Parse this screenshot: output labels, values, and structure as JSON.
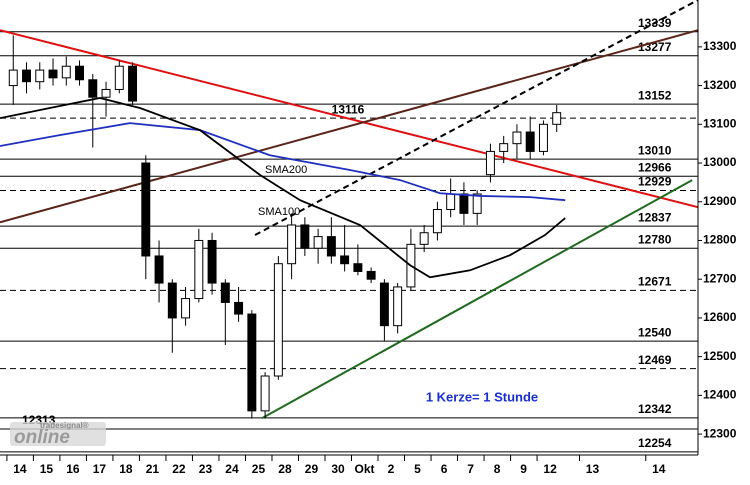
{
  "chart_data": {
    "type": "candlestick",
    "x": [
      -0.25,
      0.25,
      0.75,
      1.25,
      1.75,
      2.25,
      2.75,
      3.25,
      3.75,
      4.25,
      4.75,
      5.25,
      5.75,
      6.25,
      6.75,
      7.25,
      7.75,
      8.25,
      8.75,
      9.25,
      9.75,
      10.25,
      10.75,
      11.25,
      11.75,
      12.25,
      12.75,
      13.25,
      13.75,
      14.25,
      14.75,
      15.25,
      15.75,
      16.25,
      16.75,
      17.25,
      17.75,
      18.25,
      18.75,
      19.25,
      19.75,
      20.25
    ],
    "open": [
      13200,
      13240,
      13210,
      13240,
      13220,
      13250,
      13215,
      13170,
      13190,
      13250,
      13000,
      12760,
      12690,
      12600,
      12650,
      12800,
      12690,
      12640,
      12610,
      12360,
      12450,
      12740,
      12840,
      12780,
      12810,
      12760,
      12740,
      12720,
      12690,
      12580,
      12680,
      12790,
      12820,
      12880,
      12920,
      12870,
      12970,
      13030,
      13050,
      13080,
      13030,
      13100
    ],
    "high": [
      13330,
      13260,
      13260,
      13270,
      13275,
      13265,
      13230,
      13210,
      13265,
      13260,
      13020,
      12800,
      12700,
      12680,
      12830,
      12820,
      12700,
      12680,
      12620,
      12460,
      12760,
      12870,
      12860,
      12830,
      12860,
      12840,
      12790,
      12730,
      12700,
      12690,
      12830,
      12840,
      12900,
      12960,
      12950,
      12930,
      13050,
      13070,
      13100,
      13120,
      13110,
      13150
    ],
    "low": [
      13150,
      13180,
      13190,
      13200,
      13200,
      13200,
      13040,
      13120,
      13180,
      13150,
      12700,
      12640,
      12510,
      12580,
      12640,
      12660,
      12530,
      12590,
      12340,
      12340,
      12440,
      12700,
      12760,
      12740,
      12740,
      12720,
      12710,
      12690,
      12540,
      12560,
      12670,
      12770,
      12800,
      12860,
      12840,
      12840,
      12950,
      13000,
      13010,
      13010,
      13020,
      13080
    ],
    "close": [
      13240,
      13210,
      13240,
      13220,
      13250,
      13215,
      13170,
      13190,
      13250,
      13160,
      12760,
      12690,
      12600,
      12650,
      12800,
      12690,
      12640,
      12610,
      12360,
      12450,
      12740,
      12840,
      12780,
      12810,
      12760,
      12740,
      12720,
      12700,
      12580,
      12680,
      12790,
      12820,
      12880,
      12920,
      12870,
      12920,
      13030,
      13050,
      13080,
      13030,
      13100,
      13130
    ],
    "up_color": "#ffffff",
    "down_color": "#000000",
    "series": [
      {
        "name": "SMA200",
        "color": "#1f2fc0",
        "x": [
          -0.75,
          1.5,
          4.15,
          6.8,
          9.43,
          12.45,
          14.34,
          15.85,
          17.36,
          19.25,
          20.57
        ],
        "values": [
          13044,
          13072,
          13103,
          13085,
          13020,
          12982,
          12956,
          12922,
          12915,
          12912,
          12904
        ]
      },
      {
        "name": "SMA100",
        "color": "#000000",
        "x": [
          -0.75,
          1.13,
          3.02,
          4.53,
          6.79,
          9.06,
          10.57,
          12.83,
          14.72,
          15.47,
          16.98,
          18.49,
          19.81,
          20.57
        ],
        "values": [
          13116,
          13142,
          13168,
          13142,
          13085,
          12969,
          12904,
          12840,
          12736,
          12705,
          12723,
          12762,
          12814,
          12858
        ]
      }
    ],
    "trendlines": [
      {
        "color": "#e01010",
        "dashed": false,
        "x": [
          -0.75,
          25.58
        ],
        "values": [
          13343,
          12886
        ]
      },
      {
        "color": "#5a2418",
        "dashed": false,
        "x": [
          -0.75,
          25.58
        ],
        "values": [
          12847,
          13343
        ]
      },
      {
        "color": "#000000",
        "dashed": true,
        "x": [
          8.87,
          25.58
        ],
        "values": [
          12814,
          13421
        ]
      },
      {
        "color": "#1e6a1e",
        "dashed": false,
        "x": [
          9.13,
          25.36
        ],
        "values": [
          12341,
          12956
        ]
      }
    ],
    "levels": [
      {
        "value": 13339,
        "dashed": false,
        "label_side": "right"
      },
      {
        "value": 13277,
        "dashed": false,
        "label_side": "right"
      },
      {
        "value": 13152,
        "dashed": false,
        "label_side": "right"
      },
      {
        "value": 13116,
        "dashed": true,
        "label_side": "center"
      },
      {
        "value": 13010,
        "dashed": false,
        "label_side": "right"
      },
      {
        "value": 12966,
        "dashed": false,
        "label_side": "right"
      },
      {
        "value": 12929,
        "dashed": true,
        "label_side": "right"
      },
      {
        "value": 12837,
        "dashed": false,
        "label_side": "right"
      },
      {
        "value": 12780,
        "dashed": false,
        "label_side": "right"
      },
      {
        "value": 12671,
        "dashed": true,
        "label_side": "right"
      },
      {
        "value": 12540,
        "dashed": false,
        "label_side": "right"
      },
      {
        "value": 12469,
        "dashed": true,
        "label_side": "right"
      },
      {
        "value": 12342,
        "dashed": false,
        "label_side": "right"
      },
      {
        "value": 12313,
        "dashed": false,
        "label_side": "left"
      },
      {
        "value": 12254,
        "dashed": false,
        "label_side": "right"
      }
    ],
    "annotation": "1 Kerze= 1 Stunde",
    "logo": {
      "brand": "tradesignal®",
      "name": "online"
    },
    "xlim": [
      -0.75,
      25.58
    ],
    "ylim": [
      12246,
      13421
    ],
    "xticks": [
      {
        "value": 0,
        "label": "14"
      },
      {
        "value": 1,
        "label": "15"
      },
      {
        "value": 2,
        "label": "16"
      },
      {
        "value": 3,
        "label": "17"
      },
      {
        "value": 4,
        "label": "18"
      },
      {
        "value": 5,
        "label": "21"
      },
      {
        "value": 6,
        "label": "22"
      },
      {
        "value": 7,
        "label": "23"
      },
      {
        "value": 8,
        "label": "24"
      },
      {
        "value": 9,
        "label": "25"
      },
      {
        "value": 10,
        "label": "28"
      },
      {
        "value": 11,
        "label": "29"
      },
      {
        "value": 12,
        "label": "30"
      },
      {
        "value": 13,
        "label": "Okt"
      },
      {
        "value": 14,
        "label": "2"
      },
      {
        "value": 15,
        "label": "5"
      },
      {
        "value": 16,
        "label": "6"
      },
      {
        "value": 17,
        "label": "7"
      },
      {
        "value": 18,
        "label": "8"
      },
      {
        "value": 19,
        "label": "9"
      },
      {
        "value": 20,
        "label": "12"
      },
      {
        "value": 21.6,
        "label": "13"
      },
      {
        "value": 24.1,
        "label": "14"
      }
    ],
    "yticks": [
      12300,
      12400,
      12500,
      12600,
      12700,
      12800,
      12900,
      13000,
      13100,
      13200,
      13300
    ]
  }
}
